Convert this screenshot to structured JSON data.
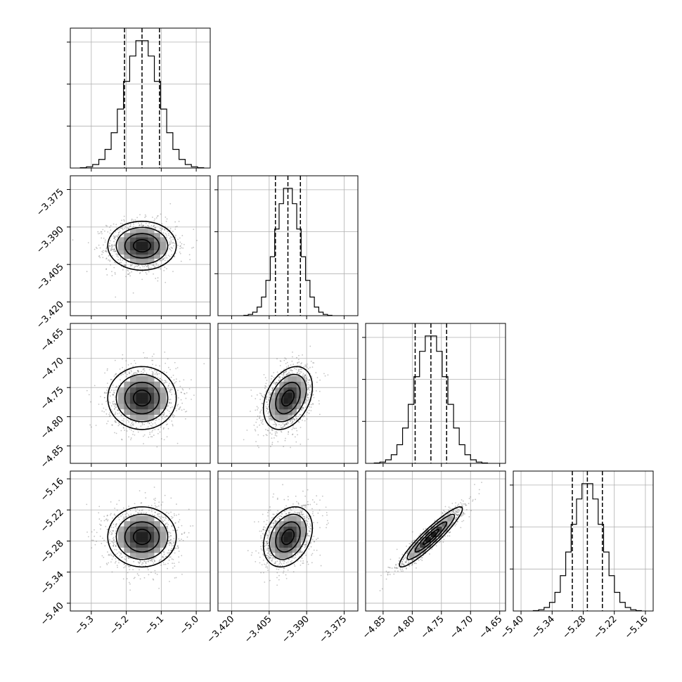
{
  "chart_data": {
    "type": "corner",
    "grid": true,
    "parameters": [
      {
        "range": [
          -5.36,
          -4.96
        ],
        "ticks": [
          -5.3,
          -5.2,
          -5.1,
          -5.0
        ],
        "tick_labels": [
          "−5.3",
          "−5.2",
          "−5.1",
          "−5.0"
        ],
        "median": -5.155,
        "quantiles": [
          -5.205,
          -5.155,
          -5.105
        ],
        "std": 0.049
      },
      {
        "range": [
          -3.4255,
          -3.3695
        ],
        "ticks": [
          -3.42,
          -3.405,
          -3.39,
          -3.375
        ],
        "tick_labels": [
          "−3.420",
          "−3.405",
          "−3.390",
          "−3.375"
        ],
        "median": -3.3975,
        "quantiles": [
          -3.4025,
          -3.3975,
          -3.3925
        ],
        "std": 0.0049
      },
      {
        "range": [
          -4.88,
          -4.64
        ],
        "ticks": [
          -4.85,
          -4.8,
          -4.75,
          -4.7,
          -4.65
        ],
        "tick_labels": [
          "−4.85",
          "−4.80",
          "−4.75",
          "−4.70",
          "−4.65"
        ],
        "median": -4.768,
        "quantiles": [
          -4.795,
          -4.768,
          -4.741
        ],
        "std": 0.027
      },
      {
        "range": [
          -5.415,
          -5.145
        ],
        "ticks": [
          -5.4,
          -5.34,
          -5.28,
          -5.22,
          -5.16
        ],
        "tick_labels": [
          "−5.40",
          "−5.34",
          "−5.28",
          "−5.22",
          "−5.16"
        ],
        "median": -5.272,
        "quantiles": [
          -5.301,
          -5.272,
          -5.243
        ],
        "std": 0.029
      }
    ],
    "correlations": [
      {
        "pair": [
          0,
          1
        ],
        "rho": 0.0
      },
      {
        "pair": [
          0,
          2
        ],
        "rho": 0.0
      },
      {
        "pair": [
          0,
          3
        ],
        "rho": 0.0
      },
      {
        "pair": [
          1,
          2
        ],
        "rho": 0.35
      },
      {
        "pair": [
          1,
          3
        ],
        "rho": 0.3
      },
      {
        "pair": [
          2,
          3
        ],
        "rho": 0.93
      }
    ],
    "histogram_bins": 20,
    "contour_levels_sigma": [
      0.5,
      1.0,
      1.5,
      2.0
    ]
  }
}
